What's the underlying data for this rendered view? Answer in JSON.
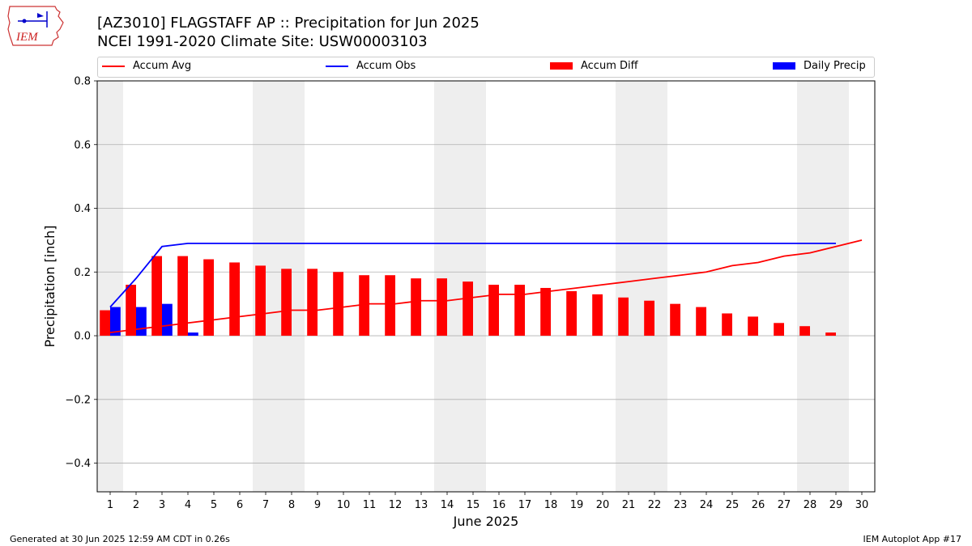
{
  "header": {
    "title_line1": "[AZ3010] FLAGSTAFF AP :: Precipitation for Jun 2025",
    "title_line2": "NCEI 1991-2020 Climate Site: USW00003103",
    "logo_text": "IEM"
  },
  "footer": {
    "left": "Generated at 30 Jun 2025 12:59 AM CDT in 0.26s",
    "right": "IEM Autoplot App #17"
  },
  "legend": {
    "accum_avg": "Accum Avg",
    "accum_obs": "Accum Obs",
    "accum_diff": "Accum Diff",
    "daily_precip": "Daily Precip"
  },
  "colors": {
    "accum_avg": "#ff0000",
    "accum_obs": "#0000ff",
    "accum_diff": "#ff0000",
    "daily_precip": "#0000ff",
    "weekend_band": "#eeeeee",
    "grid": "#b0b0b0"
  },
  "chart_data": {
    "type": "bar",
    "xlabel": "June 2025",
    "ylabel": "Precipitation [inch]",
    "ylim": [
      -0.49,
      0.8
    ],
    "yticks": [
      -0.4,
      -0.2,
      0.0,
      0.2,
      0.4,
      0.6,
      0.8
    ],
    "ytick_labels": [
      "−0.4",
      "−0.2",
      "0.0",
      "0.2",
      "0.4",
      "0.6",
      "0.8"
    ],
    "xlim": [
      0.5,
      30.5
    ],
    "x": [
      1,
      2,
      3,
      4,
      5,
      6,
      7,
      8,
      9,
      10,
      11,
      12,
      13,
      14,
      15,
      16,
      17,
      18,
      19,
      20,
      21,
      22,
      23,
      24,
      25,
      26,
      27,
      28,
      29,
      30
    ],
    "grid": "horizontal",
    "legend_placement": "top",
    "shaded_weekend_days": [
      1,
      7,
      8,
      14,
      15,
      21,
      22,
      28,
      29
    ],
    "series": [
      {
        "name": "Accum Avg",
        "kind": "line",
        "x": [
          1,
          2,
          3,
          4,
          5,
          6,
          7,
          8,
          9,
          10,
          11,
          12,
          13,
          14,
          15,
          16,
          17,
          18,
          19,
          20,
          21,
          22,
          23,
          24,
          25,
          26,
          27,
          28,
          29,
          30
        ],
        "values": [
          0.01,
          0.02,
          0.03,
          0.04,
          0.05,
          0.06,
          0.07,
          0.08,
          0.08,
          0.09,
          0.1,
          0.1,
          0.11,
          0.11,
          0.12,
          0.13,
          0.13,
          0.14,
          0.15,
          0.16,
          0.17,
          0.18,
          0.19,
          0.2,
          0.22,
          0.23,
          0.25,
          0.26,
          0.28,
          0.3
        ]
      },
      {
        "name": "Accum Obs",
        "kind": "line",
        "x": [
          1,
          2,
          3,
          4,
          5,
          6,
          7,
          8,
          9,
          10,
          11,
          12,
          13,
          14,
          15,
          16,
          17,
          18,
          19,
          20,
          21,
          22,
          23,
          24,
          25,
          26,
          27,
          28,
          29
        ],
        "values": [
          0.09,
          0.18,
          0.28,
          0.29,
          0.29,
          0.29,
          0.29,
          0.29,
          0.29,
          0.29,
          0.29,
          0.29,
          0.29,
          0.29,
          0.29,
          0.29,
          0.29,
          0.29,
          0.29,
          0.29,
          0.29,
          0.29,
          0.29,
          0.29,
          0.29,
          0.29,
          0.29,
          0.29,
          0.29
        ]
      },
      {
        "name": "Accum Diff",
        "kind": "bar",
        "x": [
          1,
          2,
          3,
          4,
          5,
          6,
          7,
          8,
          9,
          10,
          11,
          12,
          13,
          14,
          15,
          16,
          17,
          18,
          19,
          20,
          21,
          22,
          23,
          24,
          25,
          26,
          27,
          28,
          29
        ],
        "values": [
          0.08,
          0.16,
          0.25,
          0.25,
          0.24,
          0.23,
          0.22,
          0.21,
          0.21,
          0.2,
          0.19,
          0.19,
          0.18,
          0.18,
          0.17,
          0.16,
          0.16,
          0.15,
          0.14,
          0.13,
          0.12,
          0.11,
          0.1,
          0.09,
          0.07,
          0.06,
          0.04,
          0.03,
          0.01
        ]
      },
      {
        "name": "Daily Precip",
        "kind": "bar",
        "x": [
          1,
          2,
          3,
          4
        ],
        "values": [
          0.09,
          0.09,
          0.1,
          0.01
        ]
      }
    ]
  }
}
